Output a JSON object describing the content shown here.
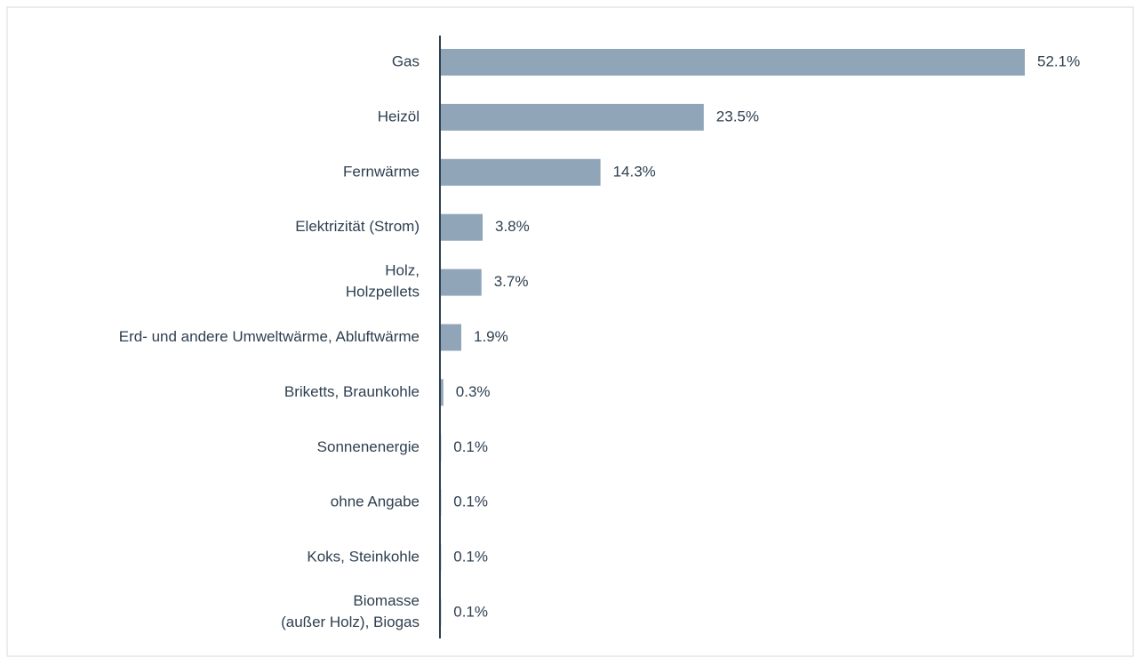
{
  "chart_data": {
    "type": "barh",
    "categories": [
      "Gas",
      "Heizöl",
      "Fernwärme",
      "Elektrizität (Strom)",
      "Holz,\nHolzpellets",
      "Erd- und andere Umweltwärme, Abluftwärme",
      "Briketts, Braunkohle",
      "Sonnenenergie",
      "ohne Angabe",
      "Koks, Steinkohle",
      "Biomasse\n(außer Holz), Biogas"
    ],
    "values": [
      52.1,
      23.5,
      14.3,
      3.8,
      3.7,
      1.9,
      0.3,
      0.1,
      0.1,
      0.1,
      0.1
    ],
    "value_labels": [
      "52.1%",
      "23.5%",
      "14.3%",
      "3.8%",
      "3.7%",
      "1.9%",
      "0.3%",
      "0.1%",
      "0.1%",
      "0.1%",
      "0.1%"
    ],
    "color": "#91a5b8"
  }
}
